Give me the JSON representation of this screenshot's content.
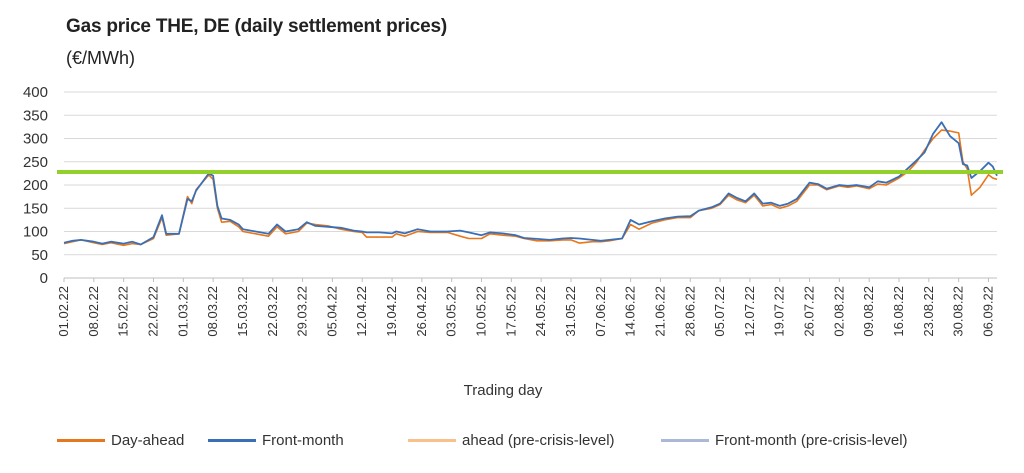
{
  "chart_data": {
    "type": "line",
    "title": "Gas price THE, DE (daily settlement prices)",
    "subtitle": "(€/MWh)",
    "xlabel": "Trading day",
    "ylabel": "",
    "ylim": [
      0,
      400
    ],
    "yticks": [
      0,
      50,
      100,
      150,
      200,
      250,
      300,
      350,
      400
    ],
    "grid": true,
    "legend_position": "bottom",
    "x_start": "01.02.22",
    "x_end": "08.09.22",
    "x_ticks": [
      "01.02.22",
      "08.02.22",
      "15.02.22",
      "22.02.22",
      "01.03.22",
      "08.03.22",
      "15.03.22",
      "22.03.22",
      "29.03.22",
      "05.04.22",
      "12.04.22",
      "19.04.22",
      "26.04.22",
      "03.05.22",
      "10.05.22",
      "17.05.22",
      "24.05.22",
      "31.05.22",
      "07.06.22",
      "14.06.22",
      "21.06.22",
      "28.06.22",
      "05.07.22",
      "12.07.22",
      "19.07.22",
      "26.07.22",
      "02.08.22",
      "09.08.22",
      "16.08.22",
      "23.08.22",
      "30.08.22",
      "06.09.22"
    ],
    "reference_line": {
      "value": 228,
      "color": "#92d12b"
    },
    "series": [
      {
        "name": "Day-ahead",
        "color": "#e8761a",
        "points": [
          [
            "01.02.22",
            74
          ],
          [
            "03.02.22",
            78
          ],
          [
            "05.02.22",
            82
          ],
          [
            "08.02.22",
            76
          ],
          [
            "10.02.22",
            72
          ],
          [
            "12.02.22",
            76
          ],
          [
            "15.02.22",
            70
          ],
          [
            "17.02.22",
            74
          ],
          [
            "19.02.22",
            72
          ],
          [
            "22.02.22",
            85
          ],
          [
            "24.02.22",
            130
          ],
          [
            "25.02.22",
            92
          ],
          [
            "28.02.22",
            95
          ],
          [
            "02.03.22",
            175
          ],
          [
            "03.03.22",
            160
          ],
          [
            "04.03.22",
            190
          ],
          [
            "07.03.22",
            222
          ],
          [
            "08.03.22",
            212
          ],
          [
            "09.03.22",
            150
          ],
          [
            "10.03.22",
            120
          ],
          [
            "12.03.22",
            122
          ],
          [
            "14.03.22",
            110
          ],
          [
            "15.03.22",
            100
          ],
          [
            "18.03.22",
            95
          ],
          [
            "21.03.22",
            90
          ],
          [
            "23.03.22",
            110
          ],
          [
            "25.03.22",
            95
          ],
          [
            "28.03.22",
            100
          ],
          [
            "30.03.22",
            118
          ],
          [
            "01.04.22",
            115
          ],
          [
            "04.04.22",
            112
          ],
          [
            "07.04.22",
            105
          ],
          [
            "10.04.22",
            100
          ],
          [
            "12.04.22",
            98
          ],
          [
            "13.04.22",
            88
          ],
          [
            "16.04.22",
            88
          ],
          [
            "19.04.22",
            88
          ],
          [
            "20.04.22",
            95
          ],
          [
            "22.04.22",
            90
          ],
          [
            "25.04.22",
            100
          ],
          [
            "28.04.22",
            98
          ],
          [
            "02.05.22",
            98
          ],
          [
            "05.05.22",
            90
          ],
          [
            "07.05.22",
            85
          ],
          [
            "10.05.22",
            85
          ],
          [
            "12.05.22",
            95
          ],
          [
            "15.05.22",
            92
          ],
          [
            "18.05.22",
            90
          ],
          [
            "20.05.22",
            85
          ],
          [
            "23.05.22",
            80
          ],
          [
            "26.05.22",
            80
          ],
          [
            "29.05.22",
            82
          ],
          [
            "31.05.22",
            82
          ],
          [
            "02.06.22",
            75
          ],
          [
            "05.06.22",
            78
          ],
          [
            "07.06.22",
            78
          ],
          [
            "09.06.22",
            80
          ],
          [
            "12.06.22",
            85
          ],
          [
            "14.06.22",
            115
          ],
          [
            "16.06.22",
            105
          ],
          [
            "19.06.22",
            118
          ],
          [
            "22.06.22",
            125
          ],
          [
            "25.06.22",
            130
          ],
          [
            "28.06.22",
            130
          ],
          [
            "30.06.22",
            145
          ],
          [
            "03.07.22",
            150
          ],
          [
            "05.07.22",
            158
          ],
          [
            "07.07.22",
            178
          ],
          [
            "09.07.22",
            168
          ],
          [
            "11.07.22",
            162
          ],
          [
            "13.07.22",
            178
          ],
          [
            "15.07.22",
            155
          ],
          [
            "17.07.22",
            158
          ],
          [
            "19.07.22",
            150
          ],
          [
            "21.07.22",
            155
          ],
          [
            "23.07.22",
            165
          ],
          [
            "26.07.22",
            200
          ],
          [
            "28.07.22",
            200
          ],
          [
            "30.07.22",
            190
          ],
          [
            "02.08.22",
            198
          ],
          [
            "04.08.22",
            195
          ],
          [
            "06.08.22",
            198
          ],
          [
            "09.08.22",
            192
          ],
          [
            "11.08.22",
            202
          ],
          [
            "13.08.22",
            200
          ],
          [
            "16.08.22",
            215
          ],
          [
            "18.08.22",
            228
          ],
          [
            "20.08.22",
            248
          ],
          [
            "22.08.22",
            275
          ],
          [
            "24.08.22",
            300
          ],
          [
            "26.08.22",
            318
          ],
          [
            "28.08.22",
            316
          ],
          [
            "30.08.22",
            312
          ],
          [
            "31.08.22",
            250
          ],
          [
            "01.09.22",
            235
          ],
          [
            "02.09.22",
            178
          ],
          [
            "04.09.22",
            195
          ],
          [
            "06.09.22",
            222
          ],
          [
            "07.09.22",
            215
          ],
          [
            "08.09.22",
            212
          ]
        ]
      },
      {
        "name": "Front-month",
        "color": "#3a6fb5",
        "points": [
          [
            "01.02.22",
            76
          ],
          [
            "03.02.22",
            80
          ],
          [
            "05.02.22",
            82
          ],
          [
            "08.02.22",
            78
          ],
          [
            "10.02.22",
            74
          ],
          [
            "12.02.22",
            78
          ],
          [
            "15.02.22",
            74
          ],
          [
            "17.02.22",
            78
          ],
          [
            "19.02.22",
            72
          ],
          [
            "22.02.22",
            88
          ],
          [
            "24.02.22",
            135
          ],
          [
            "25.02.22",
            95
          ],
          [
            "28.02.22",
            95
          ],
          [
            "02.03.22",
            170
          ],
          [
            "03.03.22",
            165
          ],
          [
            "04.03.22",
            188
          ],
          [
            "07.03.22",
            225
          ],
          [
            "08.03.22",
            220
          ],
          [
            "09.03.22",
            155
          ],
          [
            "10.03.22",
            128
          ],
          [
            "12.03.22",
            125
          ],
          [
            "14.03.22",
            115
          ],
          [
            "15.03.22",
            105
          ],
          [
            "18.03.22",
            100
          ],
          [
            "21.03.22",
            95
          ],
          [
            "23.03.22",
            115
          ],
          [
            "25.03.22",
            100
          ],
          [
            "28.03.22",
            105
          ],
          [
            "30.03.22",
            120
          ],
          [
            "01.04.22",
            112
          ],
          [
            "04.04.22",
            110
          ],
          [
            "07.04.22",
            108
          ],
          [
            "10.04.22",
            102
          ],
          [
            "12.04.22",
            100
          ],
          [
            "13.04.22",
            98
          ],
          [
            "16.04.22",
            98
          ],
          [
            "19.04.22",
            96
          ],
          [
            "20.04.22",
            100
          ],
          [
            "22.04.22",
            96
          ],
          [
            "25.04.22",
            105
          ],
          [
            "28.04.22",
            100
          ],
          [
            "02.05.22",
            100
          ],
          [
            "05.05.22",
            102
          ],
          [
            "07.05.22",
            98
          ],
          [
            "10.05.22",
            92
          ],
          [
            "12.05.22",
            98
          ],
          [
            "15.05.22",
            96
          ],
          [
            "18.05.22",
            92
          ],
          [
            "20.05.22",
            86
          ],
          [
            "23.05.22",
            84
          ],
          [
            "26.05.22",
            82
          ],
          [
            "29.05.22",
            85
          ],
          [
            "31.05.22",
            86
          ],
          [
            "02.06.22",
            85
          ],
          [
            "05.06.22",
            82
          ],
          [
            "07.06.22",
            80
          ],
          [
            "09.06.22",
            82
          ],
          [
            "12.06.22",
            85
          ],
          [
            "14.06.22",
            125
          ],
          [
            "16.06.22",
            115
          ],
          [
            "19.06.22",
            122
          ],
          [
            "22.06.22",
            128
          ],
          [
            "25.06.22",
            132
          ],
          [
            "28.06.22",
            133
          ],
          [
            "30.06.22",
            145
          ],
          [
            "03.07.22",
            152
          ],
          [
            "05.07.22",
            160
          ],
          [
            "07.07.22",
            182
          ],
          [
            "09.07.22",
            172
          ],
          [
            "11.07.22",
            165
          ],
          [
            "13.07.22",
            182
          ],
          [
            "15.07.22",
            160
          ],
          [
            "17.07.22",
            162
          ],
          [
            "19.07.22",
            155
          ],
          [
            "21.07.22",
            160
          ],
          [
            "23.07.22",
            170
          ],
          [
            "26.07.22",
            205
          ],
          [
            "28.07.22",
            202
          ],
          [
            "30.07.22",
            192
          ],
          [
            "02.08.22",
            200
          ],
          [
            "04.08.22",
            198
          ],
          [
            "06.08.22",
            200
          ],
          [
            "09.08.22",
            195
          ],
          [
            "11.08.22",
            208
          ],
          [
            "13.08.22",
            205
          ],
          [
            "16.08.22",
            218
          ],
          [
            "18.08.22",
            235
          ],
          [
            "20.08.22",
            252
          ],
          [
            "22.08.22",
            270
          ],
          [
            "24.08.22",
            310
          ],
          [
            "26.08.22",
            335
          ],
          [
            "28.08.22",
            305
          ],
          [
            "30.08.22",
            290
          ],
          [
            "31.08.22",
            245
          ],
          [
            "01.09.22",
            242
          ],
          [
            "02.09.22",
            215
          ],
          [
            "04.09.22",
            230
          ],
          [
            "06.09.22",
            248
          ],
          [
            "07.09.22",
            240
          ],
          [
            "08.09.22",
            220
          ]
        ]
      },
      {
        "name": "ahead (pre-crisis-level)",
        "color": "#f8c08b",
        "points": []
      },
      {
        "name": "Front-month (pre-crisis-level)",
        "color": "#a9b9d6",
        "points": []
      }
    ]
  }
}
